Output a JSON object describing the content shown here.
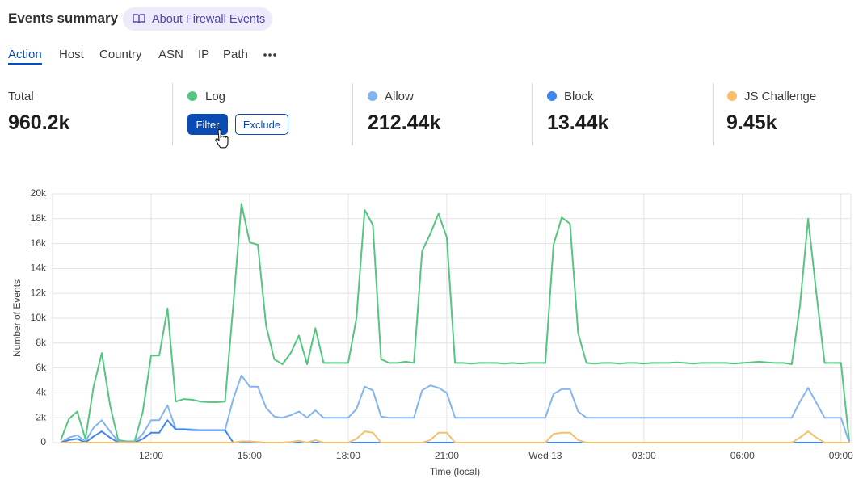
{
  "header": {
    "title": "Events summary",
    "link": "About Firewall Events"
  },
  "tabs": [
    "Action",
    "Host",
    "Country",
    "ASN",
    "IP",
    "Path"
  ],
  "stats": [
    {
      "label": "Total",
      "value": "960.2k"
    },
    {
      "label": "Log",
      "color": "#55c57f",
      "buttons": [
        "Filter",
        "Exclude"
      ]
    },
    {
      "label": "Allow",
      "color": "#84b4ef",
      "value": "212.44k"
    },
    {
      "label": "Block",
      "color": "#3f86ef",
      "value": "13.44k"
    },
    {
      "label": "JS Challenge",
      "color": "#f6bf6b",
      "value": "9.45k"
    }
  ],
  "chart_data": {
    "type": "line",
    "xlabel": "Time (local)",
    "ylabel": "Number of Events",
    "xlim": [
      9,
      33.3
    ],
    "ylim": [
      0,
      20000
    ],
    "xticks": [
      {
        "value": 12,
        "label": "12:00"
      },
      {
        "value": 15,
        "label": "15:00"
      },
      {
        "value": 18,
        "label": "18:00"
      },
      {
        "value": 21,
        "label": "21:00"
      },
      {
        "value": 24,
        "label": "Wed 13"
      },
      {
        "value": 27,
        "label": "03:00"
      },
      {
        "value": 30,
        "label": "06:00"
      },
      {
        "value": 33,
        "label": "09:00"
      }
    ],
    "yticks": [
      0,
      {
        "value": 2000,
        "label": "2k"
      },
      {
        "value": 4000,
        "label": "4k"
      },
      {
        "value": 6000,
        "label": "6k"
      },
      {
        "value": 8000,
        "label": "8k"
      },
      {
        "value": 10000,
        "label": "10k"
      },
      {
        "value": 12000,
        "label": "12k"
      },
      {
        "value": 14000,
        "label": "14k"
      },
      {
        "value": 16000,
        "label": "16k"
      },
      {
        "value": 18000,
        "label": "18k"
      },
      {
        "value": 20000,
        "label": "20k"
      }
    ],
    "grid": true,
    "x": [
      9.25,
      9.5,
      9.75,
      10,
      10.25,
      10.5,
      10.75,
      11,
      11.25,
      11.5,
      11.75,
      12,
      12.25,
      12.5,
      12.75,
      13,
      13.25,
      13.5,
      13.75,
      14,
      14.25,
      14.5,
      14.75,
      15,
      15.25,
      15.5,
      15.75,
      16,
      16.25,
      16.5,
      16.75,
      17,
      17.25,
      17.5,
      17.75,
      18,
      18.25,
      18.5,
      18.75,
      19,
      19.25,
      19.5,
      19.75,
      20,
      20.25,
      20.5,
      20.75,
      21,
      21.25,
      21.5,
      21.75,
      22,
      22.25,
      22.5,
      22.75,
      23,
      23.25,
      23.5,
      23.75,
      24,
      24.25,
      24.5,
      24.75,
      25,
      25.25,
      25.5,
      25.75,
      26,
      26.25,
      26.5,
      26.75,
      27,
      27.25,
      27.5,
      27.75,
      28,
      28.25,
      28.5,
      28.75,
      29,
      29.25,
      29.5,
      29.75,
      30,
      30.25,
      30.5,
      30.75,
      31,
      31.25,
      31.5,
      31.75,
      32,
      32.25,
      32.5,
      32.75,
      33,
      33.25
    ],
    "series": [
      {
        "color": "#55c57f",
        "values": [
          200,
          1900,
          2500,
          300,
          4500,
          7200,
          3000,
          200,
          100,
          100,
          2500,
          7000,
          7000,
          10800,
          3300,
          3500,
          3450,
          3300,
          3250,
          3250,
          3300,
          11000,
          19200,
          16100,
          15900,
          9400,
          6700,
          6300,
          7200,
          8600,
          6300,
          9200,
          6400,
          6400,
          6400,
          6400,
          10000,
          18700,
          17500,
          6700,
          6400,
          6400,
          6500,
          6400,
          15400,
          16800,
          18400,
          16500,
          6400,
          6400,
          6350,
          6400,
          6400,
          6400,
          6350,
          6400,
          6350,
          6400,
          6400,
          6400,
          15900,
          18100,
          17600,
          8800,
          6400,
          6350,
          6400,
          6400,
          6350,
          6400,
          6400,
          6350,
          6400,
          6400,
          6400,
          6450,
          6400,
          6350,
          6400,
          6400,
          6400,
          6400,
          6350,
          6400,
          6450,
          6500,
          6450,
          6400,
          6400,
          6300,
          11000,
          18000,
          12000,
          6400,
          6400,
          6400,
          100
        ]
      },
      {
        "color": "#84b4ef",
        "values": [
          0,
          400,
          600,
          100,
          1200,
          1800,
          900,
          100,
          50,
          50,
          700,
          1800,
          1800,
          3000,
          1100,
          1100,
          1050,
          1000,
          1000,
          1000,
          1000,
          3500,
          5400,
          4500,
          4500,
          2800,
          2100,
          2000,
          2200,
          2500,
          2000,
          2600,
          2000,
          2000,
          2000,
          2000,
          2700,
          4500,
          4200,
          2100,
          2000,
          2000,
          2000,
          2000,
          4200,
          4600,
          4400,
          4000,
          2000,
          2000,
          2000,
          2000,
          2000,
          2000,
          2000,
          2000,
          2000,
          2000,
          2000,
          2000,
          3900,
          4300,
          4300,
          2500,
          2000,
          2000,
          2000,
          2000,
          2000,
          2000,
          2000,
          2000,
          2000,
          2000,
          2000,
          2000,
          2000,
          2000,
          2000,
          2000,
          2000,
          2000,
          2000,
          2000,
          2000,
          2000,
          2000,
          2000,
          2000,
          2000,
          3300,
          4400,
          3200,
          2000,
          2000,
          2000,
          0
        ]
      },
      {
        "color": "#3f86ef",
        "values": [
          0,
          200,
          300,
          0,
          500,
          900,
          400,
          0,
          0,
          0,
          300,
          800,
          800,
          1800,
          1050,
          1050,
          1000,
          1000,
          1000,
          1000,
          1000,
          0,
          0,
          0,
          0,
          0,
          0,
          0,
          0,
          0,
          0,
          0,
          0,
          0,
          0,
          0,
          0,
          0,
          0,
          0,
          0,
          0,
          0,
          0,
          0,
          0,
          0,
          0,
          0,
          0,
          0,
          0,
          0,
          0,
          0,
          0,
          0,
          0,
          0,
          0,
          0,
          0,
          0,
          0,
          0,
          0,
          0,
          0,
          0,
          0,
          0,
          0,
          0,
          0,
          0,
          0,
          0,
          0,
          0,
          0,
          0,
          0,
          0,
          0,
          0,
          0,
          0,
          0,
          0,
          0,
          0,
          0,
          0,
          0,
          0,
          0,
          0
        ]
      },
      {
        "color": "#f6bf6b",
        "values": [
          0,
          0,
          0,
          0,
          0,
          0,
          0,
          0,
          0,
          0,
          0,
          0,
          0,
          0,
          0,
          0,
          0,
          0,
          0,
          0,
          0,
          0,
          100,
          100,
          50,
          0,
          0,
          0,
          50,
          150,
          0,
          200,
          0,
          0,
          0,
          0,
          300,
          900,
          800,
          0,
          0,
          0,
          0,
          0,
          0,
          200,
          800,
          800,
          0,
          0,
          0,
          0,
          0,
          0,
          0,
          0,
          0,
          0,
          0,
          0,
          700,
          800,
          800,
          200,
          0,
          0,
          0,
          0,
          0,
          0,
          0,
          0,
          0,
          0,
          0,
          0,
          0,
          0,
          0,
          0,
          0,
          0,
          0,
          0,
          0,
          0,
          0,
          0,
          0,
          0,
          400,
          900,
          400,
          0,
          0,
          0,
          0
        ]
      }
    ]
  }
}
